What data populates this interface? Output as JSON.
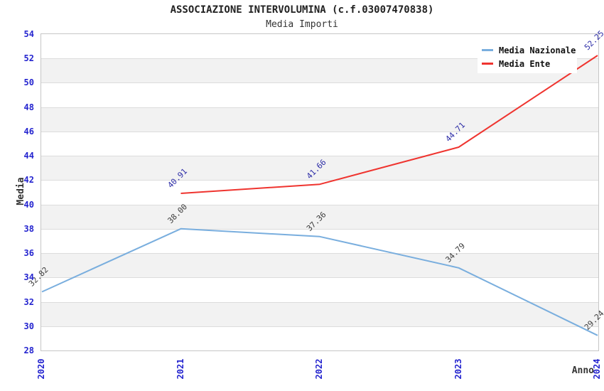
{
  "chart_data": {
    "type": "line",
    "title": "ASSOCIAZIONE INTERVOLUMINA (c.f.03007470838)",
    "subtitle": "Media Importi",
    "xlabel": "Anno",
    "ylabel": "Media",
    "categories": [
      "2020",
      "2021",
      "2022",
      "2023",
      "2024"
    ],
    "series": [
      {
        "name": "Media Nazionale",
        "color": "#79aede",
        "label_color": "#3d3d3d",
        "values": [
          32.82,
          38.0,
          37.36,
          34.79,
          29.24
        ],
        "point_labels": [
          "32.82",
          "38.00",
          "37.36",
          "34.79",
          "29.24"
        ]
      },
      {
        "name": "Media Ente",
        "color": "#ef342f",
        "label_color": "#2b2ba6",
        "values": [
          null,
          40.91,
          41.66,
          44.71,
          52.25
        ],
        "point_labels": [
          null,
          "40.91",
          "41.66",
          "44.71",
          "52.25"
        ]
      }
    ],
    "ylim": [
      28,
      54
    ],
    "ytick_step": 2,
    "grid": "horizontal gridlines with alternating bands",
    "legend_position": "top-right",
    "colors": {
      "tick_label": "#2424cf",
      "band_fill": "#f2f2f2",
      "gridline": "#dcdcdc",
      "plot_border": "#c6c6c6",
      "axis_title": "#333333",
      "title": "#222222"
    }
  }
}
